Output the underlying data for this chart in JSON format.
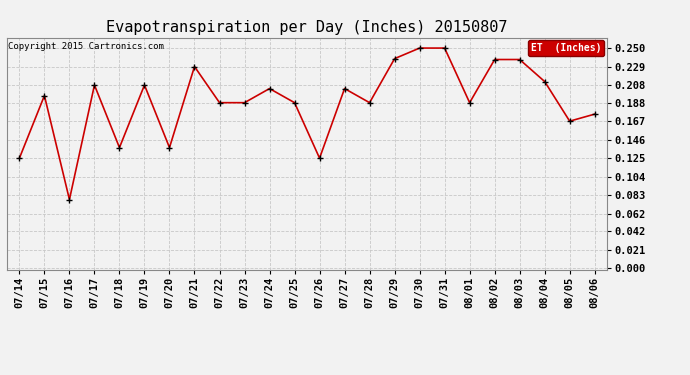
{
  "title": "Evapotranspiration per Day (Inches) 20150807",
  "copyright": "Copyright 2015 Cartronics.com",
  "legend_label": "ET  (Inches)",
  "dates": [
    "07/14",
    "07/15",
    "07/16",
    "07/17",
    "07/18",
    "07/19",
    "07/20",
    "07/21",
    "07/22",
    "07/23",
    "07/24",
    "07/25",
    "07/26",
    "07/27",
    "07/28",
    "07/29",
    "07/30",
    "07/31",
    "08/01",
    "08/02",
    "08/03",
    "08/04",
    "08/05",
    "08/06"
  ],
  "values": [
    0.125,
    0.196,
    0.078,
    0.208,
    0.137,
    0.208,
    0.137,
    0.229,
    0.188,
    0.188,
    0.204,
    0.188,
    0.125,
    0.204,
    0.188,
    0.238,
    0.25,
    0.25,
    0.188,
    0.237,
    0.237,
    0.212,
    0.167,
    0.175
  ],
  "yticks": [
    0.0,
    0.021,
    0.042,
    0.062,
    0.083,
    0.104,
    0.125,
    0.146,
    0.167,
    0.188,
    0.208,
    0.229,
    0.25
  ],
  "ylim": [
    -0.002,
    0.262
  ],
  "line_color": "#cc0000",
  "marker_color": "#000000",
  "background_color": "#f2f2f2",
  "grid_color": "#c8c8c8",
  "title_fontsize": 11,
  "tick_fontsize": 7.5,
  "copyright_fontsize": 6.5,
  "legend_bg": "#cc0000",
  "legend_text_color": "#ffffff",
  "legend_fontsize": 7
}
